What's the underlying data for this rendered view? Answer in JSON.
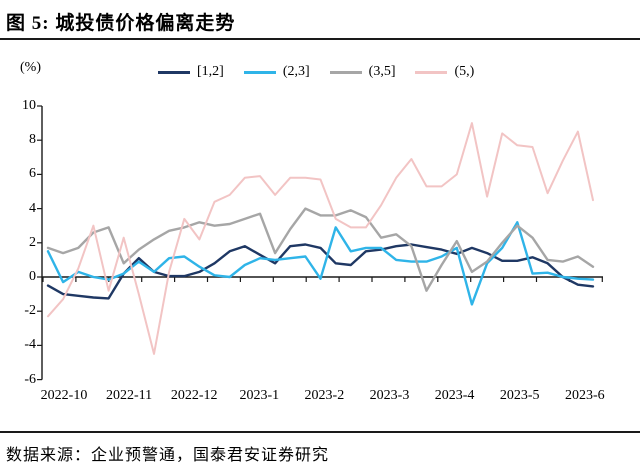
{
  "figure": {
    "title": "图 5:  城投债价格偏离走势",
    "source": "数据来源：企业预警通，国泰君安证券研究",
    "unit_label": "(%)"
  },
  "chart_data": {
    "type": "line",
    "title": "城投债价格偏离走势",
    "unit_label": "(%)",
    "xlabel": "",
    "ylabel": "(%)",
    "ylim": [
      -6,
      10
    ],
    "ytick_step": 2,
    "yticks": [
      10,
      8,
      6,
      4,
      2,
      0,
      -2,
      -4,
      -6
    ],
    "x_tick_labels": [
      "2022-10",
      "2022-11",
      "2022-12",
      "2023-1",
      "2023-2",
      "2023-3",
      "2023-4",
      "2023-5",
      "2023-6"
    ],
    "x_unit": "week",
    "grid": false,
    "legend_position": "top",
    "series": [
      {
        "name": "[1,2]",
        "color": "#1F3864",
        "width": 2.4,
        "values": [
          -0.5,
          -1.0,
          -1.1,
          -1.2,
          -1.25,
          0.2,
          1.1,
          0.3,
          0.05,
          0.05,
          0.3,
          0.8,
          1.5,
          1.8,
          1.3,
          0.8,
          1.8,
          1.9,
          1.7,
          0.8,
          0.7,
          1.5,
          1.6,
          1.8,
          1.9,
          1.75,
          1.6,
          1.35,
          1.7,
          1.4,
          0.95,
          0.95,
          1.15,
          0.8,
          0.0,
          -0.45,
          -0.55
        ]
      },
      {
        "name": "(2,3]",
        "color": "#2FB4E8",
        "width": 2.4,
        "values": [
          1.5,
          -0.3,
          0.3,
          0.0,
          -0.15,
          0.2,
          0.9,
          0.3,
          1.1,
          1.2,
          0.6,
          0.1,
          0.0,
          0.7,
          1.1,
          1.0,
          1.1,
          1.2,
          -0.1,
          2.9,
          1.5,
          1.7,
          1.7,
          1.0,
          0.9,
          0.9,
          1.2,
          1.7,
          -1.6,
          0.8,
          1.7,
          3.2,
          0.2,
          0.25,
          0.0,
          -0.1,
          -0.15
        ]
      },
      {
        "name": "(3,5]",
        "color": "#A6A6A6",
        "width": 2.4,
        "values": [
          1.7,
          1.4,
          1.7,
          2.6,
          2.9,
          0.8,
          1.6,
          2.2,
          2.7,
          2.9,
          3.2,
          3.0,
          3.1,
          3.4,
          3.7,
          1.4,
          2.8,
          4.0,
          3.6,
          3.6,
          3.9,
          3.5,
          2.3,
          2.5,
          1.8,
          -0.8,
          0.7,
          2.1,
          0.3,
          0.9,
          2.0,
          3.0,
          2.3,
          1.0,
          0.9,
          1.2,
          0.6
        ]
      },
      {
        "name": "(5,)",
        "color": "#F2C4C4",
        "width": 2.0,
        "values": [
          -2.3,
          -1.3,
          0.5,
          3.0,
          -0.8,
          2.3,
          -1.0,
          -4.5,
          0.3,
          3.4,
          2.2,
          4.4,
          4.8,
          5.8,
          5.9,
          4.8,
          5.8,
          5.8,
          5.7,
          3.4,
          2.9,
          2.9,
          4.2,
          5.8,
          6.9,
          5.3,
          5.3,
          6.0,
          9.0,
          4.7,
          8.4,
          7.7,
          7.6,
          4.9,
          6.8,
          8.5,
          4.5
        ]
      }
    ]
  }
}
